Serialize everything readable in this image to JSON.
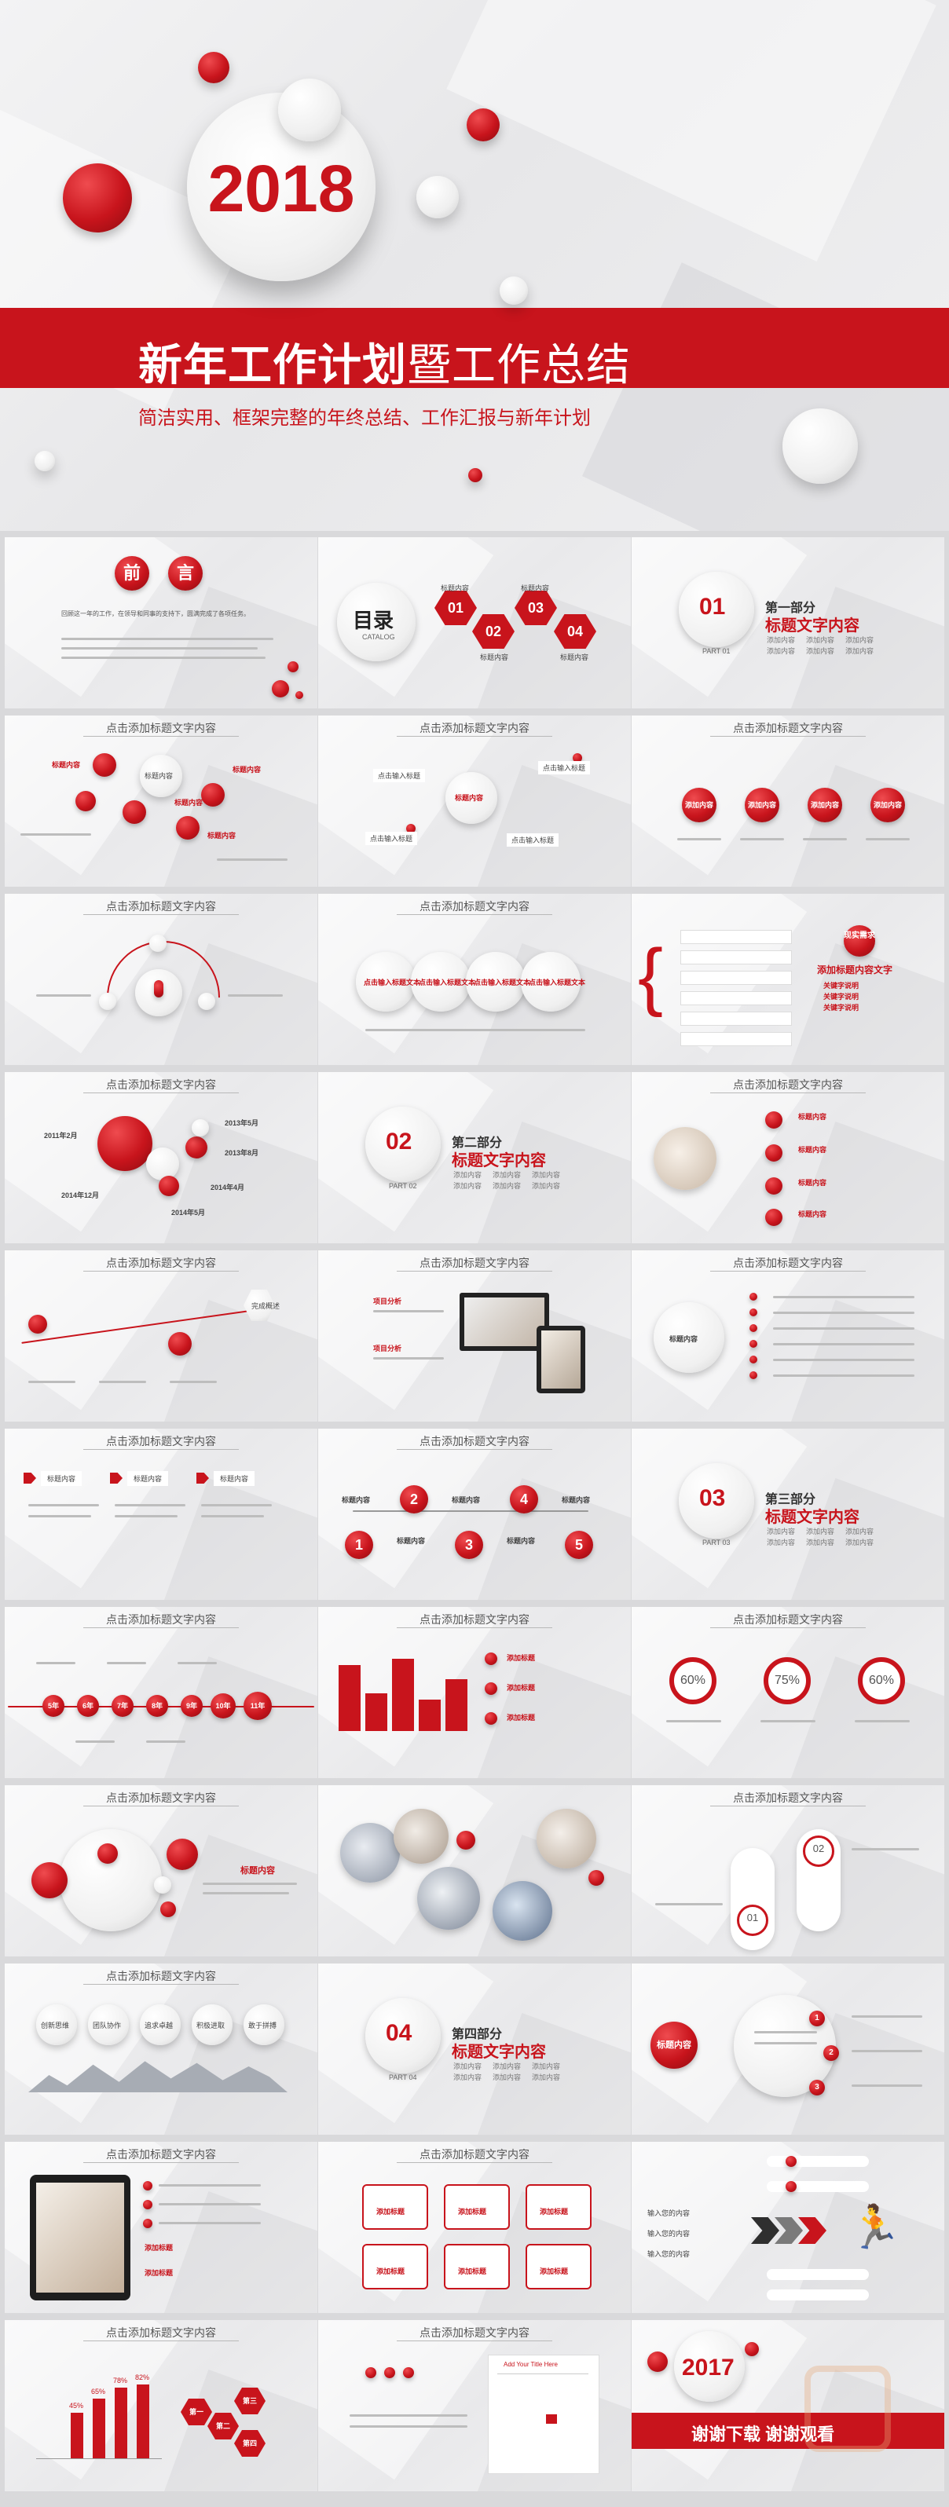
{
  "hero": {
    "year": "2018",
    "title_main": "新年工作计划",
    "title_rest": "暨工作总结",
    "subtitle": "简洁实用、框架完整的年终总结、工作汇报与新年计划"
  },
  "slides": {
    "s1": {
      "title_a": "前",
      "title_b": "言",
      "body": "回顾这一年的工作，在领导和同事的支持下，圆满完成了各项任务。"
    },
    "s2": {
      "catalog": "目录",
      "catalog_en": "CATALOG",
      "nums": [
        "01",
        "02",
        "03",
        "04"
      ],
      "items": [
        "标题内容",
        "标题内容",
        "标题内容",
        "标题内容"
      ]
    },
    "s3": {
      "num": "01",
      "part": "第一部分",
      "title": "标题文字内容",
      "en": "PART 01",
      "bullets": [
        "添加内容",
        "添加内容",
        "添加内容",
        "添加内容",
        "添加内容",
        "添加内容"
      ]
    },
    "common_title": "点击添加标题文字内容",
    "s4": {
      "center": "标题内容",
      "labels": [
        "标题内容",
        "标题内容",
        "标题内容",
        "标题内容"
      ]
    },
    "s5": {
      "center": "标题内容",
      "tags": [
        "点击输入标题",
        "点击输入标题",
        "点击输入标题",
        "点击输入标题"
      ]
    },
    "s6": {
      "labels": [
        "添加内容",
        "添加内容",
        "添加内容",
        "添加内容"
      ]
    },
    "s8": {
      "labels": [
        "点击输入标题文本",
        "点击输入标题文本",
        "点击输入标题文本",
        "点击输入标题文本"
      ]
    },
    "s9": {
      "head": "现实需求",
      "sub": "添加标题内容文字",
      "items": [
        "关键字说明",
        "关键字说明",
        "关键字说明"
      ]
    },
    "s10": {
      "dates": [
        "2011年2月",
        "2013年5月",
        "2013年8月",
        "2014年4月",
        "2014年12月",
        "2014年5月"
      ]
    },
    "s11": {
      "num": "02",
      "part": "第二部分",
      "title": "标题文字内容",
      "en": "PART 02",
      "bullets": [
        "添加内容",
        "添加内容",
        "添加内容",
        "添加内容",
        "添加内容",
        "添加内容"
      ]
    },
    "s12": {
      "labels": [
        "标题内容",
        "标题内容",
        "标题内容",
        "标题内容"
      ]
    },
    "s13": {
      "tag": "完成概述"
    },
    "s14": {
      "labels": [
        "项目分析",
        "项目分析"
      ]
    },
    "s15": {
      "center": "标题内容"
    },
    "s16": {
      "tags": [
        "标题内容",
        "标题内容",
        "标题内容"
      ]
    },
    "s17": {
      "nums": [
        "1",
        "2",
        "3",
        "4",
        "5"
      ],
      "labels": [
        "标题内容",
        "标题内容",
        "标题内容",
        "标题内容",
        "标题内容"
      ]
    },
    "s18": {
      "num": "03",
      "part": "第三部分",
      "title": "标题文字内容",
      "en": "PART 03",
      "bullets": [
        "添加内容",
        "添加内容",
        "添加内容",
        "添加内容",
        "添加内容",
        "添加内容"
      ]
    },
    "s19": {
      "years": [
        "5年",
        "6年",
        "7年",
        "8年",
        "9年",
        "10年",
        "11年"
      ]
    },
    "s20": {
      "items": [
        "添加标题",
        "添加标题",
        "添加标题"
      ]
    },
    "s21": {
      "pcts": [
        "60%",
        "75%",
        "60%"
      ]
    },
    "s22": {
      "tag": "标题内容"
    },
    "s24": {
      "nums": [
        "01",
        "02"
      ]
    },
    "s25": {
      "labels": [
        "创新思维",
        "团队协作",
        "追求卓越",
        "积极进取",
        "敢于拼搏"
      ]
    },
    "s26": {
      "num": "04",
      "part": "第四部分",
      "title": "标题文字内容",
      "en": "PART 04",
      "bullets": [
        "添加内容",
        "添加内容",
        "添加内容",
        "添加内容",
        "添加内容",
        "添加内容"
      ]
    },
    "s27": {
      "tag": "标题内容",
      "nums": [
        "1",
        "2",
        "3"
      ]
    },
    "s28": {
      "tags": [
        "添加标题",
        "添加标题"
      ]
    },
    "s29": {
      "boxes": [
        "添加标题",
        "添加标题",
        "添加标题",
        "添加标题",
        "添加标题",
        "添加标题"
      ]
    },
    "s30": {
      "labels": [
        "输入您的内容",
        "输入您的内容",
        "输入您的内容"
      ]
    },
    "s31": {
      "pcts": [
        "45%",
        "65%",
        "78%",
        "82%"
      ],
      "cats": [
        "第一",
        "第二",
        "第三",
        "第四"
      ]
    },
    "s32": {
      "cal_head": "Add Your Title Here"
    },
    "s33": {
      "year": "2017",
      "thanks": "谢谢下载 谢谢观看"
    }
  },
  "colors": {
    "accent": "#c8141c",
    "bg": "#ececee"
  }
}
